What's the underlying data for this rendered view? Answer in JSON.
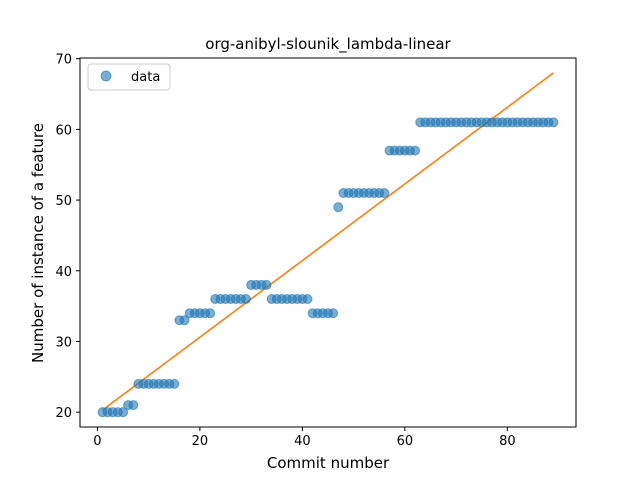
{
  "chart_data": {
    "type": "scatter",
    "title": "org-anibyl-slounik_lambda-linear",
    "xlabel": "Commit number",
    "ylabel": "Number of instance of a feature",
    "xlim": [
      -3.4,
      93.4
    ],
    "ylim": [
      17.9,
      70.1
    ],
    "xticks": [
      0,
      20,
      40,
      60,
      80
    ],
    "yticks": [
      20,
      30,
      40,
      50,
      60,
      70
    ],
    "grid": false,
    "legend": {
      "position": "top-left",
      "entries": [
        "data"
      ]
    },
    "colors": {
      "data": "#1f77b4",
      "fit": "#ff7f0e"
    },
    "series": [
      {
        "name": "data",
        "kind": "scatter",
        "x": [
          1,
          2,
          3,
          4,
          5,
          6,
          7,
          8,
          9,
          10,
          11,
          12,
          13,
          14,
          15,
          16,
          17,
          18,
          19,
          20,
          21,
          22,
          23,
          24,
          25,
          26,
          27,
          28,
          29,
          30,
          31,
          32,
          33,
          34,
          35,
          36,
          37,
          38,
          39,
          40,
          41,
          42,
          43,
          44,
          45,
          46,
          47,
          48,
          49,
          50,
          51,
          52,
          53,
          54,
          55,
          56,
          57,
          58,
          59,
          60,
          61,
          62,
          63,
          64,
          65,
          66,
          67,
          68,
          69,
          70,
          71,
          72,
          73,
          74,
          75,
          76,
          77,
          78,
          79,
          80,
          81,
          82,
          83,
          84,
          85,
          86,
          87,
          88,
          89
        ],
        "y": [
          20,
          20,
          20,
          20,
          20,
          21,
          21,
          24,
          24,
          24,
          24,
          24,
          24,
          24,
          24,
          33,
          33,
          34,
          34,
          34,
          34,
          34,
          36,
          36,
          36,
          36,
          36,
          36,
          36,
          38,
          38,
          38,
          38,
          36,
          36,
          36,
          36,
          36,
          36,
          36,
          36,
          34,
          34,
          34,
          34,
          34,
          49,
          51,
          51,
          51,
          51,
          51,
          51,
          51,
          51,
          51,
          57,
          57,
          57,
          57,
          57,
          57,
          61,
          61,
          61,
          61,
          61,
          61,
          61,
          61,
          61,
          61,
          61,
          61,
          61,
          61,
          61,
          61,
          61,
          61,
          61,
          61,
          61,
          61,
          61,
          61,
          61,
          61,
          61
        ]
      },
      {
        "name": "",
        "kind": "line",
        "x": [
          1,
          89
        ],
        "y": [
          20.3,
          68.0
        ]
      }
    ]
  }
}
